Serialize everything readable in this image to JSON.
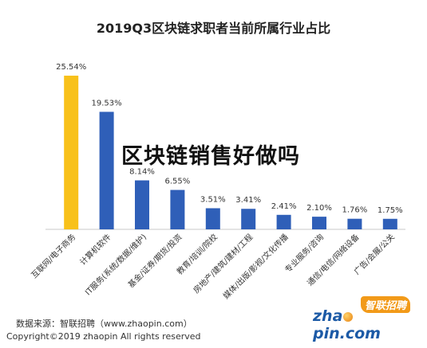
{
  "chart_data": {
    "type": "bar",
    "title": "2019Q3区块链求职者当前所属行业占比",
    "categories": [
      "互联网/电子商务",
      "计算机软件",
      "IT服务(系统/数据/维护)",
      "基金/证券/期货/投资",
      "教育/培训/院校",
      "房地产/建筑/建材/工程",
      "媒体/出版/影视/文化传播",
      "专业服务/咨询",
      "通信/电信/网络设备",
      "广告/会展/公关"
    ],
    "values": [
      25.54,
      19.53,
      8.14,
      6.55,
      3.51,
      3.41,
      2.41,
      2.1,
      1.76,
      1.75
    ],
    "value_labels": [
      "25.54%",
      "19.53%",
      "8.14%",
      "6.55%",
      "3.51%",
      "3.41%",
      "2.41%",
      "2.10%",
      "1.76%",
      "1.75%"
    ],
    "ylim": [
      0,
      27
    ],
    "grid": false,
    "colors": {
      "highlight": "#f8c11a",
      "bar": "#2f5fb8",
      "axis": "#c8c8c8",
      "label": "#333333"
    }
  },
  "overlay_text": "区块链销售好做吗",
  "footer": {
    "source": "数据来源：智联招聘（www.zhaopin.com）",
    "copyright": "Copyright©2019 zhaopin All rights reserved"
  },
  "logo": {
    "cn": "智联招聘",
    "en_left": "zha",
    "en_right": "pin.com",
    "icon": "orange-ball-icon"
  }
}
